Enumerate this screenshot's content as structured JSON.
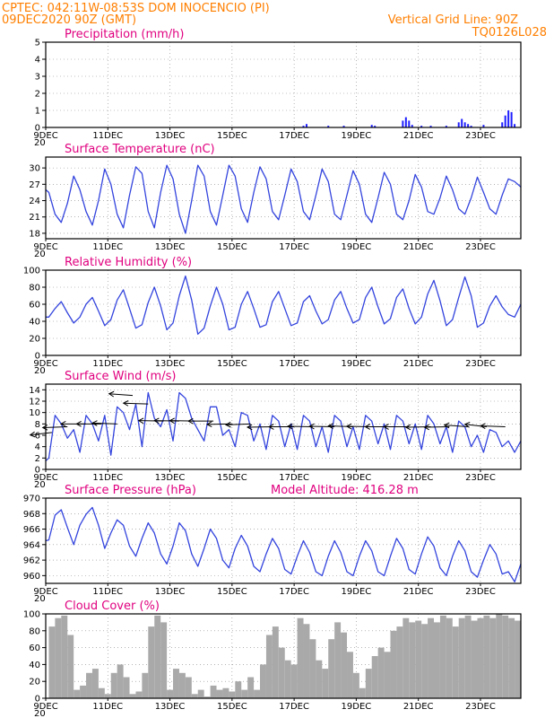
{
  "header": {
    "line1": "CPTEC:   042:11W-08:53S   DOM INOCENCIO (PI)",
    "line2": "09DEC2020 90Z (GMT)",
    "grid_note": "Vertical Grid Line: 90Z",
    "run_code": "TQ0126L028"
  },
  "colors": {
    "header": "#ff7f00",
    "panel_title": "#e0007f",
    "line": "#3344dd",
    "bar": "#1f1fff",
    "cloud": "#a9a9a9",
    "axis": "#000000",
    "wind_arrow": "#000000"
  },
  "x_axis": {
    "labels": [
      "9DEC",
      "11DEC",
      "13DEC",
      "15DEC",
      "17DEC",
      "19DEC",
      "21DEC",
      "23DEC"
    ],
    "label_days": [
      9,
      11,
      13,
      15,
      17,
      19,
      21,
      23
    ],
    "start_day": 9,
    "end_day": 24.3,
    "minor_stub": "20"
  },
  "chart_data": [
    {
      "type": "bar",
      "title": "Precipitation (mm/h)",
      "ylim": [
        0,
        5
      ],
      "yticks": [
        0,
        1,
        2,
        3,
        4,
        5
      ],
      "grid": "dotted",
      "x": [
        17.3,
        17.4,
        18.1,
        18.6,
        19.5,
        19.6,
        20.5,
        20.6,
        20.7,
        20.8,
        21.1,
        21.4,
        21.9,
        22.3,
        22.4,
        22.5,
        22.6,
        22.7,
        23.1,
        23.7,
        23.8,
        23.9,
        24.0,
        24.1
      ],
      "values": [
        0.1,
        0.2,
        0.1,
        0.1,
        0.15,
        0.1,
        0.4,
        0.6,
        0.4,
        0.15,
        0.1,
        0.1,
        0.1,
        0.3,
        0.5,
        0.3,
        0.2,
        0.1,
        0.15,
        0.3,
        0.7,
        1.0,
        0.9,
        0.2
      ]
    },
    {
      "type": "line",
      "title": "Surface Temperature (nC)",
      "ylim": [
        17,
        32
      ],
      "yticks": [
        18,
        21,
        24,
        27,
        30
      ],
      "grid": "dotted",
      "x": [
        9.0,
        9.1,
        9.3,
        9.5,
        9.7,
        9.9,
        10.1,
        10.3,
        10.5,
        10.7,
        10.9,
        11.1,
        11.3,
        11.5,
        11.7,
        11.9,
        12.1,
        12.3,
        12.5,
        12.7,
        12.9,
        13.1,
        13.3,
        13.5,
        13.7,
        13.9,
        14.1,
        14.3,
        14.5,
        14.7,
        14.9,
        15.1,
        15.3,
        15.5,
        15.7,
        15.9,
        16.1,
        16.3,
        16.5,
        16.7,
        16.9,
        17.1,
        17.3,
        17.5,
        17.7,
        17.9,
        18.1,
        18.3,
        18.5,
        18.7,
        18.9,
        19.1,
        19.3,
        19.5,
        19.7,
        19.9,
        20.1,
        20.3,
        20.5,
        20.7,
        20.9,
        21.1,
        21.3,
        21.5,
        21.7,
        21.9,
        22.1,
        22.3,
        22.5,
        22.7,
        22.9,
        23.1,
        23.3,
        23.5,
        23.7,
        23.9,
        24.1,
        24.3
      ],
      "values": [
        26.0,
        25.5,
        21.5,
        20.0,
        23.5,
        28.5,
        26.0,
        22.0,
        19.5,
        24.0,
        29.8,
        27.0,
        21.5,
        19.0,
        25.0,
        30.2,
        29.0,
        22.0,
        19.0,
        25.5,
        30.5,
        28.0,
        21.5,
        18.0,
        24.0,
        30.5,
        28.5,
        22.0,
        19.5,
        25.0,
        30.5,
        28.5,
        22.5,
        20.0,
        25.5,
        30.2,
        28.0,
        22.0,
        20.5,
        25.0,
        29.8,
        27.5,
        22.0,
        20.5,
        25.0,
        29.8,
        27.5,
        21.5,
        20.5,
        25.0,
        29.5,
        27.0,
        21.5,
        20.0,
        24.5,
        29.2,
        27.0,
        21.5,
        20.5,
        24.0,
        28.8,
        26.5,
        22.0,
        21.5,
        24.5,
        28.5,
        26.0,
        22.5,
        21.5,
        24.5,
        28.3,
        25.5,
        22.5,
        21.5,
        25.0,
        28.0,
        27.5,
        26.5
      ]
    },
    {
      "type": "line",
      "title": "Relative Humidity (%)",
      "ylim": [
        0,
        100
      ],
      "yticks": [
        0,
        20,
        40,
        60,
        80,
        100
      ],
      "grid": "dotted",
      "x": [
        9.0,
        9.1,
        9.3,
        9.5,
        9.7,
        9.9,
        10.1,
        10.3,
        10.5,
        10.7,
        10.9,
        11.1,
        11.3,
        11.5,
        11.7,
        11.9,
        12.1,
        12.3,
        12.5,
        12.7,
        12.9,
        13.1,
        13.3,
        13.5,
        13.7,
        13.9,
        14.1,
        14.3,
        14.5,
        14.7,
        14.9,
        15.1,
        15.3,
        15.5,
        15.7,
        15.9,
        16.1,
        16.3,
        16.5,
        16.7,
        16.9,
        17.1,
        17.3,
        17.5,
        17.7,
        17.9,
        18.1,
        18.3,
        18.5,
        18.7,
        18.9,
        19.1,
        19.3,
        19.5,
        19.7,
        19.9,
        20.1,
        20.3,
        20.5,
        20.7,
        20.9,
        21.1,
        21.3,
        21.5,
        21.7,
        21.9,
        22.1,
        22.3,
        22.5,
        22.7,
        22.9,
        23.1,
        23.3,
        23.5,
        23.7,
        23.9,
        24.1,
        24.3
      ],
      "values": [
        45,
        45,
        55,
        63,
        50,
        38,
        45,
        60,
        68,
        52,
        35,
        42,
        65,
        77,
        55,
        32,
        36,
        62,
        80,
        58,
        30,
        38,
        70,
        93,
        65,
        25,
        32,
        58,
        80,
        60,
        30,
        33,
        60,
        75,
        55,
        33,
        36,
        63,
        75,
        55,
        35,
        38,
        63,
        70,
        52,
        37,
        42,
        65,
        75,
        55,
        38,
        42,
        68,
        80,
        57,
        37,
        43,
        68,
        78,
        55,
        37,
        45,
        72,
        88,
        64,
        35,
        42,
        68,
        92,
        70,
        33,
        38,
        58,
        70,
        57,
        48,
        45,
        60
      ]
    },
    {
      "type": "line",
      "title": "Surface Wind (m/s)",
      "ylim": [
        0,
        15
      ],
      "yticks": [
        0,
        2,
        4,
        6,
        8,
        10,
        12,
        14
      ],
      "grid": "dotted",
      "x": [
        9.0,
        9.1,
        9.3,
        9.5,
        9.7,
        9.9,
        10.1,
        10.3,
        10.5,
        10.7,
        10.9,
        11.1,
        11.3,
        11.5,
        11.7,
        11.9,
        12.1,
        12.3,
        12.5,
        12.7,
        12.9,
        13.1,
        13.3,
        13.5,
        13.7,
        13.9,
        14.1,
        14.3,
        14.5,
        14.7,
        14.9,
        15.1,
        15.3,
        15.5,
        15.7,
        15.9,
        16.1,
        16.3,
        16.5,
        16.7,
        16.9,
        17.1,
        17.3,
        17.5,
        17.7,
        17.9,
        18.1,
        18.3,
        18.5,
        18.7,
        18.9,
        19.1,
        19.3,
        19.5,
        19.7,
        19.9,
        20.1,
        20.3,
        20.5,
        20.7,
        20.9,
        21.1,
        21.3,
        21.5,
        21.7,
        21.9,
        22.1,
        22.3,
        22.5,
        22.7,
        22.9,
        23.1,
        23.3,
        23.5,
        23.7,
        23.9,
        24.1,
        24.3
      ],
      "values": [
        1.5,
        2.0,
        9.5,
        8.0,
        5.5,
        7.0,
        3.0,
        9.5,
        8.0,
        5.0,
        9.5,
        2.5,
        11.0,
        10.0,
        7.0,
        11.5,
        4.0,
        13.5,
        9.0,
        7.5,
        10.5,
        5.0,
        13.5,
        12.5,
        9.0,
        7.0,
        5.0,
        11.0,
        11.0,
        6.0,
        7.0,
        4.0,
        10.0,
        9.5,
        5.0,
        8.0,
        3.5,
        9.5,
        8.5,
        4.0,
        8.0,
        3.5,
        9.5,
        8.5,
        4.0,
        7.5,
        3.0,
        9.5,
        8.5,
        4.0,
        7.5,
        3.5,
        9.5,
        8.5,
        4.5,
        8.0,
        3.5,
        9.5,
        8.5,
        4.5,
        8.0,
        3.5,
        9.5,
        8.0,
        4.5,
        7.5,
        3.0,
        8.5,
        7.5,
        4.0,
        6.0,
        3.0,
        7.0,
        6.5,
        4.0,
        5.0,
        3.0,
        5.0
      ],
      "arrows": {
        "x": [
          9.2,
          9.7,
          10.3,
          10.8,
          11.3,
          11.8,
          12.3,
          12.8,
          13.3,
          13.8,
          14.4,
          15.0,
          15.6,
          16.3,
          17.0,
          17.6,
          18.3,
          18.9,
          19.5,
          20.1,
          20.7,
          21.4,
          22.0,
          22.6,
          23.2,
          23.8
        ],
        "speed": [
          6.5,
          7.5,
          8.0,
          8.0,
          8.0,
          13.0,
          11.5,
          8.5,
          8.5,
          8.5,
          8.5,
          8.0,
          8.0,
          7.5,
          7.5,
          7.5,
          7.5,
          7.5,
          7.5,
          7.5,
          7.5,
          7.5,
          7.5,
          7.5,
          7.5,
          7.5
        ],
        "direction_deg": [
          60,
          80,
          90,
          90,
          100,
          110,
          100,
          95,
          95,
          95,
          90,
          85,
          80,
          85,
          90,
          95,
          95,
          100,
          95,
          90,
          90,
          85,
          85,
          110,
          120,
          100
        ]
      }
    },
    {
      "type": "line",
      "title": "Surface Pressure (hPa)",
      "annotation": "Model Altitude: 416.28 m",
      "ylim": [
        959,
        970
      ],
      "yticks": [
        960,
        962,
        964,
        966,
        968,
        970
      ],
      "grid": "dotted",
      "x": [
        9.0,
        9.1,
        9.3,
        9.5,
        9.7,
        9.9,
        10.1,
        10.3,
        10.5,
        10.7,
        10.9,
        11.1,
        11.3,
        11.5,
        11.7,
        11.9,
        12.1,
        12.3,
        12.5,
        12.7,
        12.9,
        13.1,
        13.3,
        13.5,
        13.7,
        13.9,
        14.1,
        14.3,
        14.5,
        14.7,
        14.9,
        15.1,
        15.3,
        15.5,
        15.7,
        15.9,
        16.1,
        16.3,
        16.5,
        16.7,
        16.9,
        17.1,
        17.3,
        17.5,
        17.7,
        17.9,
        18.1,
        18.3,
        18.5,
        18.7,
        18.9,
        19.1,
        19.3,
        19.5,
        19.7,
        19.9,
        20.1,
        20.3,
        20.5,
        20.7,
        20.9,
        21.1,
        21.3,
        21.5,
        21.7,
        21.9,
        22.1,
        22.3,
        22.5,
        22.7,
        22.9,
        23.1,
        23.3,
        23.5,
        23.7,
        23.9,
        24.1,
        24.3
      ],
      "values": [
        964.5,
        964.6,
        967.8,
        968.5,
        966.2,
        964.0,
        966.5,
        967.9,
        968.8,
        966.5,
        963.5,
        965.5,
        967.2,
        966.5,
        963.8,
        962.5,
        964.8,
        966.8,
        965.5,
        962.8,
        961.5,
        963.8,
        966.8,
        965.8,
        962.8,
        961.2,
        963.5,
        966.0,
        964.8,
        962.0,
        961.0,
        963.5,
        965.2,
        963.8,
        961.2,
        960.5,
        962.8,
        964.8,
        963.5,
        960.8,
        960.2,
        962.5,
        964.5,
        963.0,
        960.5,
        960.0,
        962.5,
        964.5,
        963.0,
        960.5,
        960.0,
        962.5,
        964.5,
        963.2,
        960.5,
        960.0,
        962.5,
        964.8,
        963.5,
        960.8,
        960.2,
        962.8,
        965.0,
        963.8,
        961.0,
        960.0,
        962.5,
        964.5,
        963.2,
        960.5,
        959.8,
        962.0,
        964.0,
        962.8,
        960.2,
        960.5,
        959.2,
        961.5
      ]
    },
    {
      "type": "bar",
      "title": "Cloud Cover (%)",
      "ylim": [
        0,
        100
      ],
      "yticks": [
        0,
        20,
        40,
        60,
        80,
        100
      ],
      "grid": "dotted",
      "x": [
        9.2,
        9.4,
        9.6,
        9.8,
        10.0,
        10.2,
        10.4,
        10.6,
        10.8,
        11.0,
        11.2,
        11.4,
        11.6,
        11.8,
        12.0,
        12.2,
        12.4,
        12.6,
        12.8,
        13.0,
        13.2,
        13.4,
        13.6,
        13.8,
        14.0,
        14.2,
        14.4,
        14.6,
        14.8,
        15.0,
        15.2,
        15.4,
        15.6,
        15.8,
        16.0,
        16.2,
        16.4,
        16.6,
        16.8,
        17.0,
        17.2,
        17.4,
        17.6,
        17.8,
        18.0,
        18.2,
        18.4,
        18.6,
        18.8,
        19.0,
        19.2,
        19.4,
        19.6,
        19.8,
        20.0,
        20.2,
        20.4,
        20.6,
        20.8,
        21.0,
        21.2,
        21.4,
        21.6,
        21.8,
        22.0,
        22.2,
        22.4,
        22.6,
        22.8,
        23.0,
        23.2,
        23.4,
        23.6,
        23.8,
        24.0,
        24.2
      ],
      "values": [
        85,
        95,
        98,
        75,
        10,
        15,
        30,
        35,
        12,
        5,
        30,
        40,
        25,
        5,
        8,
        30,
        85,
        98,
        90,
        10,
        35,
        30,
        25,
        5,
        10,
        2,
        15,
        10,
        12,
        8,
        20,
        10,
        25,
        10,
        40,
        75,
        85,
        60,
        45,
        40,
        95,
        88,
        70,
        45,
        35,
        70,
        90,
        78,
        55,
        30,
        12,
        35,
        50,
        60,
        55,
        80,
        85,
        95,
        90,
        92,
        88,
        95,
        90,
        98,
        95,
        85,
        95,
        98,
        92,
        95,
        98,
        95,
        100,
        98,
        95,
        92
      ]
    }
  ]
}
